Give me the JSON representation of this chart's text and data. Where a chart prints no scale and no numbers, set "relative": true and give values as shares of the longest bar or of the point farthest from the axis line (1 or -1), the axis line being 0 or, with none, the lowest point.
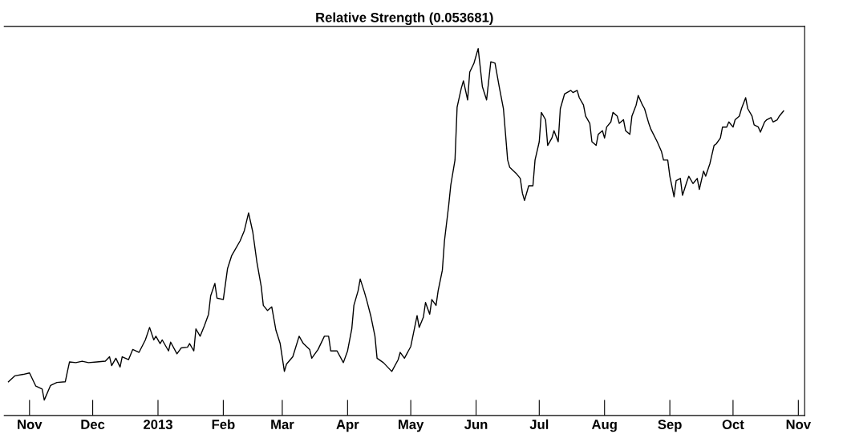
{
  "chart_data": {
    "type": "line",
    "title": "Relative Strength (0.053681)",
    "relative": true,
    "grid": false,
    "marker": "none",
    "line_style": "solid",
    "xlim": [
      "2012-10-20",
      "2013-11-04"
    ],
    "xticks": [
      {
        "value": "2012-11-01",
        "label": "Nov"
      },
      {
        "value": "2012-12-01",
        "label": "Dec"
      },
      {
        "value": "2013-01-01",
        "label": "2013"
      },
      {
        "value": "2013-02-01",
        "label": "Feb"
      },
      {
        "value": "2013-03-01",
        "label": "Mar"
      },
      {
        "value": "2013-04-01",
        "label": "Apr"
      },
      {
        "value": "2013-05-01",
        "label": "May"
      },
      {
        "value": "2013-06-01",
        "label": "Jun"
      },
      {
        "value": "2013-07-01",
        "label": "Jul"
      },
      {
        "value": "2013-08-01",
        "label": "Aug"
      },
      {
        "value": "2013-09-01",
        "label": "Sep"
      },
      {
        "value": "2013-10-01",
        "label": "Oct"
      },
      {
        "value": "2013-11-01",
        "label": "Nov"
      }
    ],
    "series": [
      {
        "color": "#000000",
        "x": [
          "2012-10-22",
          "2012-10-25",
          "2012-10-29",
          "2012-11-01",
          "2012-11-04",
          "2012-11-07",
          "2012-11-08",
          "2012-11-11",
          "2012-11-14",
          "2012-11-18",
          "2012-11-19",
          "2012-11-20",
          "2012-11-23",
          "2012-11-26",
          "2012-11-29",
          "2012-12-03",
          "2012-12-07",
          "2012-12-09",
          "2012-12-10",
          "2012-12-12",
          "2012-12-14",
          "2012-12-15",
          "2012-12-18",
          "2012-12-20",
          "2012-12-23",
          "2012-12-26",
          "2012-12-28",
          "2012-12-30",
          "2012-12-31",
          "2013-01-02",
          "2013-01-03",
          "2013-01-06",
          "2013-01-07",
          "2013-01-10",
          "2013-01-12",
          "2013-01-15",
          "2013-01-16",
          "2013-01-18",
          "2013-01-19",
          "2013-01-21",
          "2013-01-23",
          "2013-01-25",
          "2013-01-26",
          "2013-01-28",
          "2013-01-29",
          "2013-02-01",
          "2013-02-03",
          "2013-02-05",
          "2013-02-09",
          "2013-02-11",
          "2013-02-13",
          "2013-02-15",
          "2013-02-17",
          "2013-02-19",
          "2013-02-20",
          "2013-02-22",
          "2013-02-24",
          "2013-02-26",
          "2013-02-28",
          "2013-03-02",
          "2013-03-03",
          "2013-03-06",
          "2013-03-09",
          "2013-03-11",
          "2013-03-14",
          "2013-03-15",
          "2013-03-18",
          "2013-03-21",
          "2013-03-23",
          "2013-03-24",
          "2013-03-27",
          "2013-03-30",
          "2013-04-01",
          "2013-04-03",
          "2013-04-04",
          "2013-04-06",
          "2013-04-07",
          "2013-04-09",
          "2013-04-10",
          "2013-04-12",
          "2013-04-14",
          "2013-04-15",
          "2013-04-18",
          "2013-04-22",
          "2013-04-25",
          "2013-04-26",
          "2013-04-28",
          "2013-05-01",
          "2013-05-02",
          "2013-05-04",
          "2013-05-05",
          "2013-05-07",
          "2013-05-08",
          "2013-05-10",
          "2013-05-11",
          "2013-05-13",
          "2013-05-14",
          "2013-05-16",
          "2013-05-17",
          "2013-05-19",
          "2013-05-20",
          "2013-05-22",
          "2013-05-23",
          "2013-05-25",
          "2013-05-26",
          "2013-05-28",
          "2013-05-29",
          "2013-05-31",
          "2013-06-02",
          "2013-06-04",
          "2013-06-06",
          "2013-06-08",
          "2013-06-10",
          "2013-06-12",
          "2013-06-14",
          "2013-06-16",
          "2013-06-17",
          "2013-06-20",
          "2013-06-22",
          "2013-06-23",
          "2013-06-24",
          "2013-06-26",
          "2013-06-28",
          "2013-06-29",
          "2013-07-01",
          "2013-07-02",
          "2013-07-04",
          "2013-07-05",
          "2013-07-07",
          "2013-07-08",
          "2013-07-10",
          "2013-07-11",
          "2013-07-13",
          "2013-07-16",
          "2013-07-17",
          "2013-07-19",
          "2013-07-20",
          "2013-07-22",
          "2013-07-23",
          "2013-07-25",
          "2013-07-26",
          "2013-07-28",
          "2013-07-29",
          "2013-07-31",
          "2013-08-01",
          "2013-08-02",
          "2013-08-04",
          "2013-08-05",
          "2013-08-07",
          "2013-08-08",
          "2013-08-10",
          "2013-08-11",
          "2013-08-13",
          "2013-08-14",
          "2013-08-16",
          "2013-08-17",
          "2013-08-19",
          "2013-08-20",
          "2013-08-22",
          "2013-08-23",
          "2013-08-26",
          "2013-08-28",
          "2013-08-29",
          "2013-08-31",
          "2013-09-01",
          "2013-09-03",
          "2013-09-04",
          "2013-09-06",
          "2013-09-07",
          "2013-09-09",
          "2013-09-10",
          "2013-09-12",
          "2013-09-14",
          "2013-09-15",
          "2013-09-17",
          "2013-09-18",
          "2013-09-20",
          "2013-09-22",
          "2013-09-23",
          "2013-09-25",
          "2013-09-26",
          "2013-09-28",
          "2013-09-29",
          "2013-10-01",
          "2013-10-02",
          "2013-10-04",
          "2013-10-05",
          "2013-10-07",
          "2013-10-08",
          "2013-10-10",
          "2013-10-11",
          "2013-10-13",
          "2013-10-14",
          "2013-10-16",
          "2013-10-17",
          "2013-10-19",
          "2013-10-20",
          "2013-10-22",
          "2013-10-23",
          "2013-10-25"
        ],
        "values": [
          0.092,
          0.108,
          0.112,
          0.116,
          0.08,
          0.072,
          0.042,
          0.082,
          0.09,
          0.092,
          0.12,
          0.146,
          0.144,
          0.148,
          0.144,
          0.146,
          0.148,
          0.16,
          0.136,
          0.156,
          0.132,
          0.16,
          0.152,
          0.18,
          0.172,
          0.206,
          0.24,
          0.206,
          0.216,
          0.196,
          0.206,
          0.176,
          0.2,
          0.168,
          0.184,
          0.186,
          0.196,
          0.176,
          0.236,
          0.216,
          0.244,
          0.276,
          0.326,
          0.36,
          0.32,
          0.316,
          0.4,
          0.436,
          0.476,
          0.504,
          0.552,
          0.5,
          0.416,
          0.352,
          0.3,
          0.286,
          0.296,
          0.232,
          0.196,
          0.12,
          0.14,
          0.16,
          0.216,
          0.196,
          0.18,
          0.156,
          0.18,
          0.216,
          0.216,
          0.176,
          0.176,
          0.144,
          0.176,
          0.236,
          0.3,
          0.34,
          0.372,
          0.336,
          0.316,
          0.272,
          0.216,
          0.156,
          0.144,
          0.12,
          0.152,
          0.172,
          0.156,
          0.188,
          0.216,
          0.272,
          0.24,
          0.268,
          0.308,
          0.276,
          0.316,
          0.3,
          0.34,
          0.396,
          0.476,
          0.572,
          0.628,
          0.696,
          0.84,
          0.892,
          0.912,
          0.86,
          0.936,
          0.96,
          1,
          0.896,
          0.86,
          0.964,
          0.96,
          0.896,
          0.836,
          0.696,
          0.676,
          0.66,
          0.646,
          0.606,
          0.586,
          0.626,
          0.626,
          0.696,
          0.746,
          0.826,
          0.806,
          0.736,
          0.756,
          0.776,
          0.746,
          0.836,
          0.876,
          0.886,
          0.88,
          0.886,
          0.866,
          0.846,
          0.816,
          0.796,
          0.746,
          0.736,
          0.766,
          0.776,
          0.756,
          0.786,
          0.8,
          0.826,
          0.816,
          0.796,
          0.806,
          0.776,
          0.766,
          0.816,
          0.846,
          0.872,
          0.846,
          0.836,
          0.796,
          0.78,
          0.746,
          0.72,
          0.696,
          0.696,
          0.652,
          0.596,
          0.64,
          0.646,
          0.6,
          0.636,
          0.652,
          0.632,
          0.646,
          0.616,
          0.666,
          0.652,
          0.686,
          0.736,
          0.74,
          0.756,
          0.786,
          0.786,
          0.8,
          0.786,
          0.806,
          0.816,
          0.836,
          0.866,
          0.836,
          0.816,
          0.792,
          0.786,
          0.772,
          0.8,
          0.806,
          0.812,
          0.8,
          0.806,
          0.816,
          0.83
        ]
      }
    ]
  }
}
